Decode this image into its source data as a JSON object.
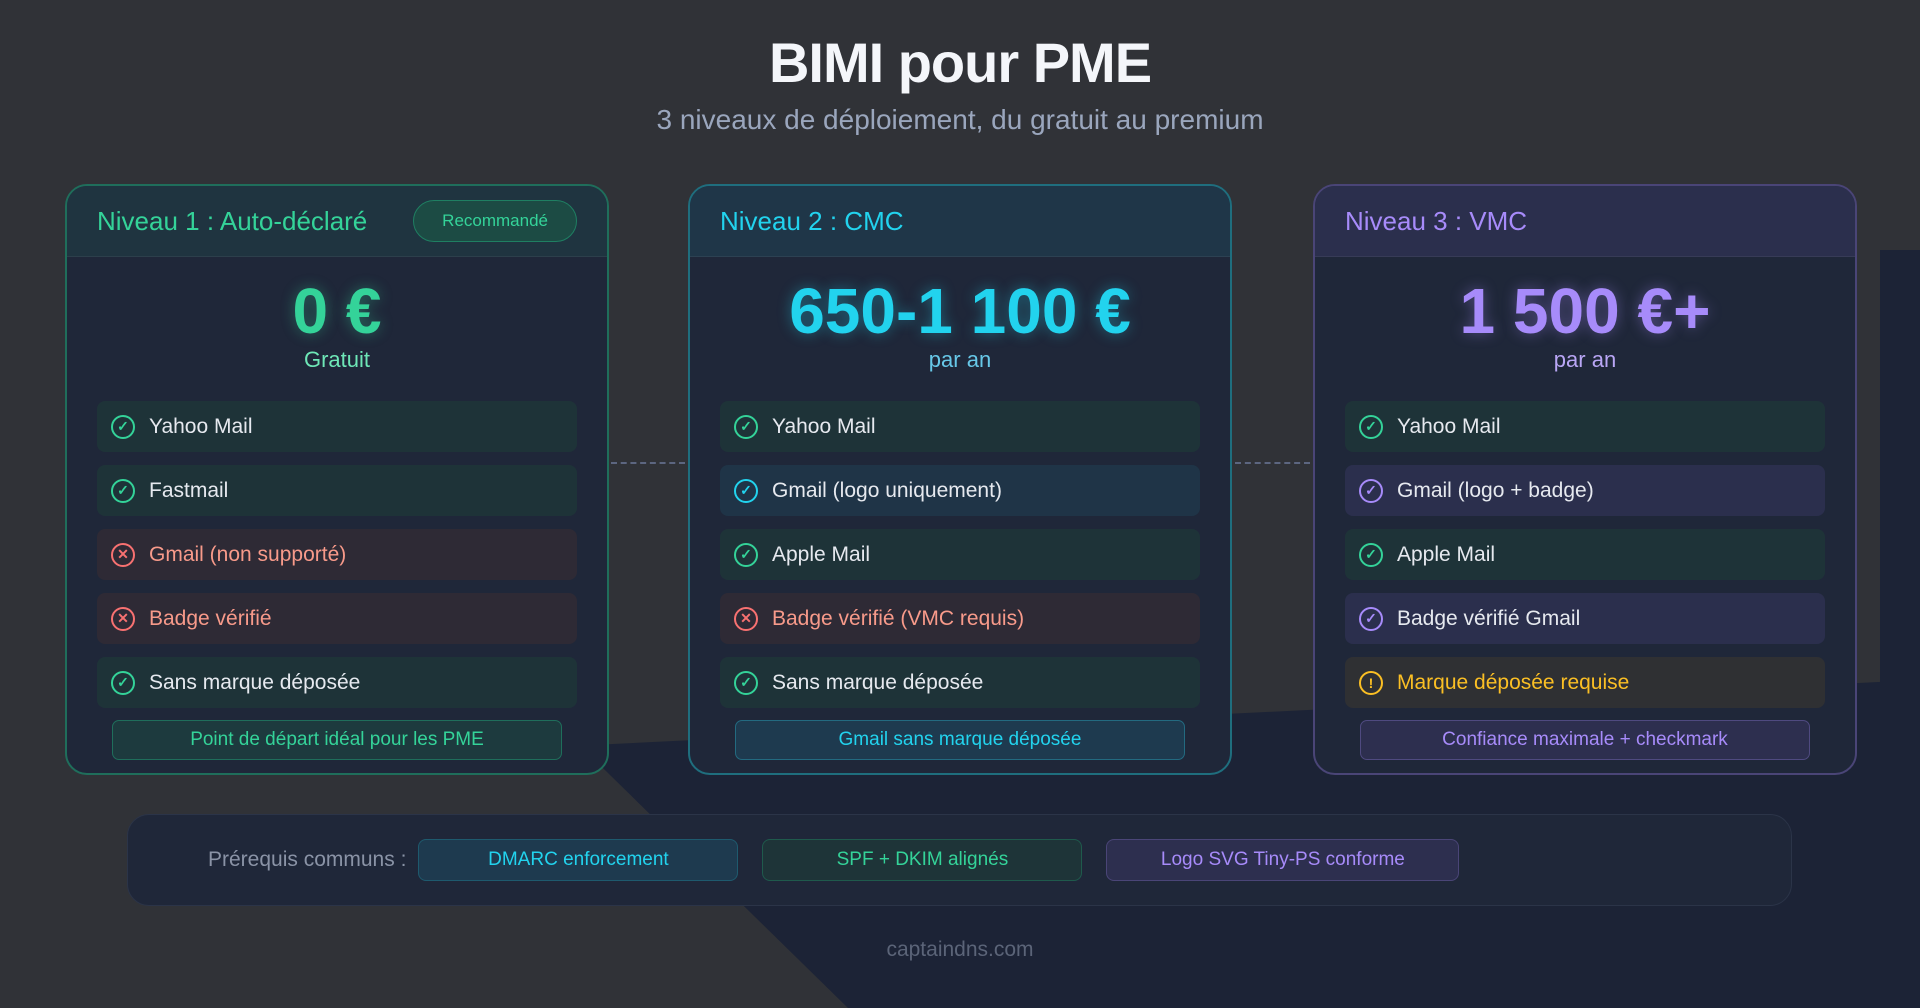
{
  "header": {
    "title": "BIMI pour PME",
    "subtitle": "3 niveaux de déploiement, du gratuit au premium"
  },
  "colors": {
    "green": "#34d399",
    "cyan": "#22d3ee",
    "purple": "#a78bfa",
    "red": "#f87171",
    "amber": "#fbbf24"
  },
  "tiers": [
    {
      "title": "Niveau 1 : Auto-déclaré",
      "badge": "Recommandé",
      "price": "0 €",
      "period": "Gratuit",
      "footer": "Point de départ idéal pour les PME",
      "features": [
        {
          "label": "Yahoo Mail",
          "status": "check"
        },
        {
          "label": "Fastmail",
          "status": "check"
        },
        {
          "label": "Gmail (non supporté)",
          "status": "cross"
        },
        {
          "label": "Badge vérifié",
          "status": "cross"
        },
        {
          "label": "Sans marque déposée",
          "status": "check"
        }
      ]
    },
    {
      "title": "Niveau 2 : CMC",
      "price": "650-1 100 €",
      "period": "par an",
      "footer": "Gmail sans marque déposée",
      "features": [
        {
          "label": "Yahoo Mail",
          "status": "check"
        },
        {
          "label": "Gmail (logo uniquement)",
          "status": "check-cyan"
        },
        {
          "label": "Apple Mail",
          "status": "check"
        },
        {
          "label": "Badge vérifié (VMC requis)",
          "status": "cross"
        },
        {
          "label": "Sans marque déposée",
          "status": "check"
        }
      ]
    },
    {
      "title": "Niveau 3 : VMC",
      "price": "1 500 €+",
      "period": "par an",
      "footer": "Confiance maximale + checkmark",
      "features": [
        {
          "label": "Yahoo Mail",
          "status": "check"
        },
        {
          "label": "Gmail (logo + badge)",
          "status": "check-purple"
        },
        {
          "label": "Apple Mail",
          "status": "check"
        },
        {
          "label": "Badge vérifié Gmail",
          "status": "check-purple"
        },
        {
          "label": "Marque déposée requise",
          "status": "warning"
        }
      ]
    }
  ],
  "prerequisites": {
    "label": "Prérequis communs :",
    "items": [
      "DMARC enforcement",
      "SPF + DKIM alignés",
      "Logo SVG Tiny-PS conforme"
    ]
  },
  "footer": {
    "site": "captaindns.com"
  }
}
